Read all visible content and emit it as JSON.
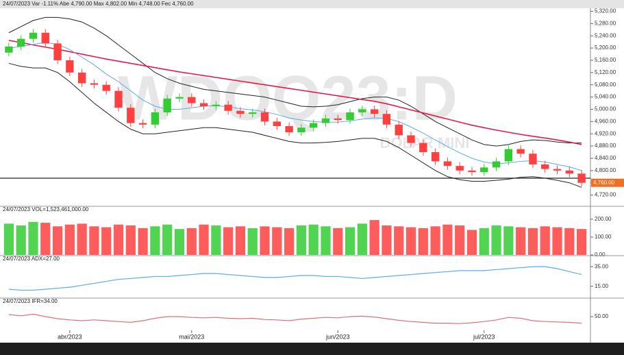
{
  "chart_data": [
    {
      "type": "candlestick",
      "title": "24/07/2023 Var -1.11% Abe 4,790.00 Max 4,802.00 Min 4,748.00 Fec 4,760.00",
      "watermark": "WDOQ23:D",
      "subtitle": "DOLAR MINI",
      "categories": [
        null,
        null,
        null,
        null,
        null,
        "abr/2023",
        null,
        null,
        null,
        null,
        null,
        null,
        null,
        null,
        null,
        "mai/2023",
        null,
        null,
        null,
        null,
        null,
        null,
        null,
        null,
        null,
        null,
        null,
        "jun/2023",
        null,
        null,
        null,
        null,
        null,
        null,
        null,
        null,
        null,
        null,
        null,
        "jul/2023",
        null,
        null,
        null,
        null,
        null,
        null,
        null,
        null
      ],
      "open": [
        5185,
        5205,
        5230,
        5250,
        5215,
        5160,
        5120,
        5085,
        5080,
        5060,
        5005,
        4955,
        4950,
        4990,
        5035,
        5040,
        5020,
        5010,
        5015,
        4995,
        4985,
        4990,
        4960,
        4945,
        4925,
        4940,
        4955,
        4970,
        4965,
        4990,
        5000,
        4985,
        4950,
        4915,
        4890,
        4860,
        4830,
        4815,
        4800,
        4795,
        4810,
        4830,
        4870,
        4855,
        4820,
        4805,
        4800,
        4790
      ],
      "high": [
        5217,
        5242,
        5262,
        5262,
        5227,
        5172,
        5132,
        5097,
        5092,
        5072,
        5017,
        4967,
        5002,
        5047,
        5052,
        5052,
        5032,
        5027,
        5027,
        5007,
        5002,
        5002,
        4972,
        4957,
        4952,
        4967,
        4982,
        4982,
        5002,
        5012,
        5012,
        4997,
        4962,
        4927,
        4902,
        4872,
        4842,
        4827,
        4812,
        4822,
        4842,
        4882,
        4882,
        4867,
        4832,
        4817,
        4812,
        4802
      ],
      "low": [
        5173,
        5193,
        5218,
        5203,
        5148,
        5108,
        5073,
        5068,
        5048,
        4993,
        4943,
        4938,
        4938,
        4978,
        5023,
        5008,
        4998,
        4998,
        4983,
        4973,
        4973,
        4948,
        4933,
        4913,
        4913,
        4928,
        4943,
        4953,
        4953,
        4978,
        4973,
        4938,
        4903,
        4878,
        4848,
        4818,
        4803,
        4788,
        4783,
        4783,
        4798,
        4818,
        4843,
        4808,
        4793,
        4788,
        4778,
        4748
      ],
      "close": [
        5205,
        5230,
        5250,
        5215,
        5160,
        5120,
        5085,
        5080,
        5060,
        5005,
        4955,
        4950,
        4990,
        5035,
        5040,
        5020,
        5010,
        5015,
        4995,
        4985,
        4990,
        4960,
        4945,
        4925,
        4940,
        4955,
        4970,
        4965,
        4990,
        5000,
        4985,
        4950,
        4915,
        4890,
        4860,
        4830,
        4815,
        4800,
        4795,
        4810,
        4830,
        4870,
        4855,
        4820,
        4805,
        4800,
        4790,
        4760
      ],
      "up_color": "#33cc33",
      "down_color": "#ff4040",
      "overlays": [
        {
          "color": "#222222",
          "values": [
            5250,
            5270,
            5290,
            5300,
            5300,
            5295,
            5285,
            5265,
            5240,
            5210,
            5180,
            5150,
            5120,
            5100,
            5085,
            5075,
            5065,
            5060,
            5055,
            5050,
            5045,
            5040,
            5030,
            5020,
            5010,
            5008,
            5010,
            5015,
            5025,
            5035,
            5040,
            5040,
            5030,
            5010,
            4985,
            4960,
            4940,
            4920,
            4900,
            4885,
            4880,
            4885,
            4895,
            4900,
            4898,
            4893,
            4890,
            4890
          ]
        },
        {
          "color": "#222222",
          "values": [
            5150,
            5140,
            5135,
            5135,
            5120,
            5090,
            5055,
            5020,
            4990,
            4960,
            4935,
            4920,
            4920,
            4925,
            4930,
            4935,
            4940,
            4940,
            4935,
            4930,
            4925,
            4915,
            4905,
            4895,
            4890,
            4890,
            4892,
            4895,
            4900,
            4905,
            4905,
            4895,
            4875,
            4850,
            4825,
            4800,
            4780,
            4770,
            4765,
            4765,
            4768,
            4772,
            4778,
            4780,
            4775,
            4768,
            4760,
            4745
          ]
        },
        {
          "color": "#e8184a",
          "values": [
            5225,
            5218,
            5210,
            5203,
            5196,
            5188,
            5180,
            5172,
            5164,
            5157,
            5150,
            5143,
            5136,
            5129,
            5122,
            5116,
            5110,
            5104,
            5098,
            5092,
            5086,
            5080,
            5074,
            5068,
            5062,
            5056,
            5050,
            5044,
            5038,
            5032,
            5026,
            5018,
            5008,
            4998,
            4988,
            4978,
            4968,
            4958,
            4948,
            4940,
            4932,
            4925,
            4918,
            4912,
            4906,
            4900,
            4893,
            4885
          ]
        },
        {
          "color": "#5aaaf0",
          "values": [
            5200,
            5205,
            5212,
            5218,
            5212,
            5195,
            5170,
            5145,
            5115,
            5090,
            5060,
            5030,
            5010,
            5000,
            5000,
            5005,
            5010,
            5012,
            5008,
            5002,
            4998,
            4992,
            4983,
            4972,
            4965,
            4960,
            4958,
            4958,
            4962,
            4968,
            4972,
            4970,
            4960,
            4942,
            4922,
            4900,
            4878,
            4858,
            4840,
            4828,
            4822,
            4825,
            4830,
            4832,
            4828,
            4820,
            4812,
            4800
          ]
        }
      ],
      "hline": 4775,
      "last_price": {
        "value": 4760,
        "label": "4,760.00"
      },
      "last_price_color": "#f07020",
      "ylim": [
        4690,
        5330
      ],
      "yticks": [
        {
          "value": 4720,
          "label": "4,720.00"
        },
        {
          "value": 4760,
          "label": "4,760.00"
        },
        {
          "value": 4800,
          "label": "4,800.00"
        },
        {
          "value": 4840,
          "label": "4,840.00"
        },
        {
          "value": 4880,
          "label": "4,880.00"
        },
        {
          "value": 4920,
          "label": "4,920.00"
        },
        {
          "value": 4960,
          "label": "4,960.00"
        },
        {
          "value": 5000,
          "label": "5,000.00"
        },
        {
          "value": 5040,
          "label": "5,040.00"
        },
        {
          "value": 5080,
          "label": "5,080.00"
        },
        {
          "value": 5120,
          "label": "5,120.00"
        },
        {
          "value": 5160,
          "label": "5,160.00"
        },
        {
          "value": 5200,
          "label": "5,200.00"
        },
        {
          "value": 5240,
          "label": "5,240.00"
        },
        {
          "value": 5280,
          "label": "5,280.00"
        },
        {
          "value": 5320,
          "label": "5,320.00"
        }
      ]
    },
    {
      "type": "bar",
      "title": "24/07/2023 VOL=1,523,461,000.00",
      "values": [
        175,
        165,
        185,
        180,
        160,
        170,
        175,
        160,
        155,
        170,
        165,
        150,
        160,
        170,
        145,
        150,
        170,
        165,
        155,
        160,
        150,
        160,
        155,
        150,
        165,
        170,
        160,
        150,
        155,
        175,
        195,
        165,
        160,
        155,
        150,
        160,
        170,
        165,
        140,
        150,
        165,
        160,
        155,
        150,
        160,
        155,
        150,
        145
      ],
      "ylim": [
        0,
        230
      ],
      "yticks": [
        {
          "value": 0,
          "label": "0.00"
        },
        {
          "value": 100,
          "label": "100.00"
        },
        {
          "value": 200,
          "label": "200.00"
        }
      ]
    },
    {
      "type": "line",
      "title": "24/07/2023 ADX=27.00",
      "color": "#5aaaf0",
      "values": [
        12,
        11,
        11,
        12,
        13,
        14,
        16,
        18,
        20,
        22,
        23,
        24,
        25,
        25,
        26,
        27,
        28,
        28,
        27,
        26,
        25,
        24,
        24,
        25,
        26,
        26,
        25,
        25,
        24,
        23,
        24,
        25,
        26,
        27,
        28,
        29,
        30,
        31,
        31,
        31,
        32,
        33,
        34,
        35,
        35,
        33,
        30,
        27
      ],
      "ylim": [
        5,
        40
      ],
      "yticks": [
        {
          "value": 15,
          "label": "15.00"
        },
        {
          "value": 35,
          "label": "35.00"
        }
      ]
    },
    {
      "type": "line",
      "title": "24/07/2023 IFR=34.00",
      "color": "#e07070",
      "values": [
        55,
        52,
        56,
        50,
        45,
        42,
        40,
        42,
        40,
        38,
        36,
        40,
        46,
        50,
        50,
        48,
        47,
        48,
        46,
        45,
        46,
        43,
        42,
        40,
        44,
        46,
        48,
        47,
        50,
        51,
        49,
        45,
        41,
        38,
        36,
        34,
        34,
        33,
        35,
        38,
        42,
        48,
        46,
        40,
        38,
        37,
        36,
        34
      ],
      "ylim": [
        20,
        80
      ],
      "yticks": [
        {
          "value": 50,
          "label": "50.00"
        }
      ]
    }
  ]
}
